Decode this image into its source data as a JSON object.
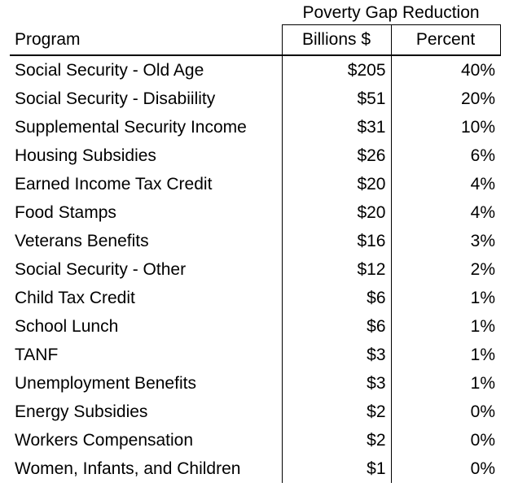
{
  "chart_data": {
    "type": "table",
    "super_header": "Poverty Gap Reduction",
    "columns": [
      "Program",
      "Billions $",
      "Percent"
    ],
    "rows": [
      {
        "program": "Social Security - Old Age",
        "billions": "$205",
        "percent": "40%"
      },
      {
        "program": "Social Security - Disabiility",
        "billions": "$51",
        "percent": "20%"
      },
      {
        "program": "Supplemental Security Income",
        "billions": "$31",
        "percent": "10%"
      },
      {
        "program": "Housing Subsidies",
        "billions": "$26",
        "percent": "6%"
      },
      {
        "program": "Earned Income Tax Credit",
        "billions": "$20",
        "percent": "4%"
      },
      {
        "program": "Food Stamps",
        "billions": "$20",
        "percent": "4%"
      },
      {
        "program": "Veterans Benefits",
        "billions": "$16",
        "percent": "3%"
      },
      {
        "program": "Social Security - Other",
        "billions": "$12",
        "percent": "2%"
      },
      {
        "program": "Child Tax Credit",
        "billions": "$6",
        "percent": "1%"
      },
      {
        "program": "School Lunch",
        "billions": "$6",
        "percent": "1%"
      },
      {
        "program": "TANF",
        "billions": "$3",
        "percent": "1%"
      },
      {
        "program": "Unemployment Benefits",
        "billions": "$3",
        "percent": "1%"
      },
      {
        "program": "Energy Subsidies",
        "billions": "$2",
        "percent": "0%"
      },
      {
        "program": "Workers Compensation",
        "billions": "$2",
        "percent": "0%"
      },
      {
        "program": "Women, Infants, and Children",
        "billions": "$1",
        "percent": "0%"
      }
    ]
  }
}
